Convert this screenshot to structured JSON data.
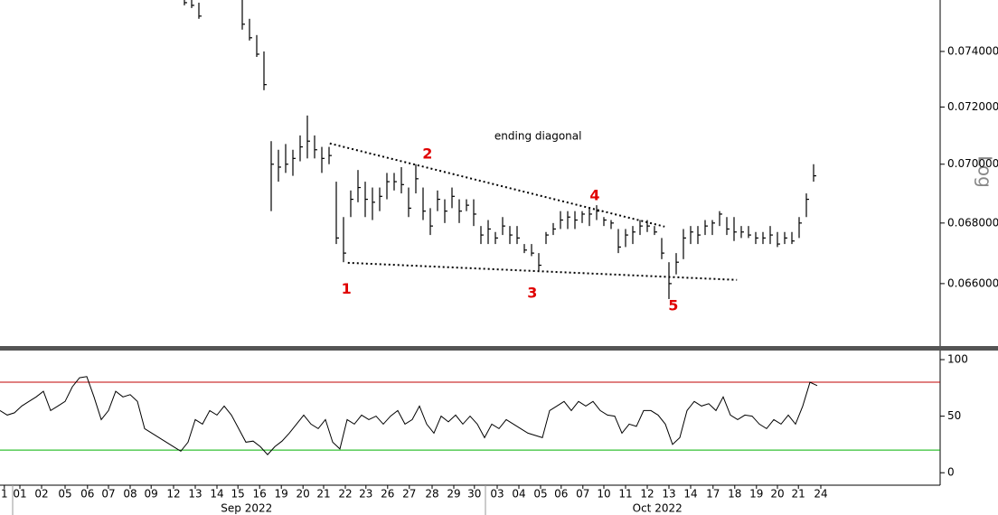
{
  "chart_data": [
    {
      "type": "ohlc",
      "log_scale": true,
      "scale_label": "Log",
      "color": "#000000",
      "xlim": [
        0,
        130
      ],
      "ylim": [
        0.064,
        0.0759
      ],
      "yticks": [
        {
          "value": 0.066,
          "label": "0.066000"
        },
        {
          "value": 0.068,
          "label": "0.068000"
        },
        {
          "value": 0.07,
          "label": "0.070000"
        },
        {
          "value": 0.072,
          "label": "0.072000"
        },
        {
          "value": 0.074,
          "label": "0.074000"
        }
      ],
      "x": [
        25.5,
        26.5,
        27.5,
        33.5,
        34.5,
        35.5,
        36.5,
        37.5,
        38.5,
        39.5,
        40.5,
        41.5,
        42.5,
        43.5,
        44.5,
        45.5,
        46.5,
        47.5,
        48.5,
        49.5,
        50.5,
        51.5,
        52.5,
        53.5,
        54.5,
        55.5,
        56.5,
        57.5,
        58.5,
        59.5,
        60.5,
        61.5,
        62.5,
        63.5,
        64.5,
        65.5,
        66.5,
        67.5,
        68.5,
        69.5,
        70.5,
        71.5,
        72.5,
        73.5,
        74.5,
        75.5,
        76.5,
        77.5,
        78.5,
        79.5,
        80.5,
        81.5,
        82.5,
        83.5,
        84.5,
        85.5,
        86.5,
        87.5,
        88.5,
        89.5,
        90.5,
        91.5,
        92.5,
        93.5,
        94.5,
        95.5,
        96.5,
        97.5,
        98.5,
        99.5,
        100.5,
        101.5,
        102.5,
        103.5,
        104.5,
        105.5,
        106.5,
        107.5,
        108.5,
        109.5,
        110.5,
        111.5,
        112.5
      ],
      "high": [
        0.0759,
        0.0759,
        0.0758,
        0.0759,
        0.0752,
        0.0746,
        0.074,
        0.0708,
        0.0705,
        0.0707,
        0.0705,
        0.071,
        0.0717,
        0.071,
        0.0706,
        0.0706,
        0.0694,
        0.0682,
        0.0691,
        0.0698,
        0.0694,
        0.0692,
        0.0692,
        0.0697,
        0.0697,
        0.0699,
        0.0692,
        0.07,
        0.0692,
        0.0685,
        0.0691,
        0.0688,
        0.0692,
        0.0688,
        0.0688,
        0.0688,
        0.0679,
        0.0681,
        0.0677,
        0.0682,
        0.0679,
        0.0679,
        0.0673,
        0.0673,
        0.067,
        0.0677,
        0.068,
        0.0684,
        0.0684,
        0.0684,
        0.0684,
        0.0685,
        0.0686,
        0.0682,
        0.0681,
        0.0678,
        0.0678,
        0.0679,
        0.0681,
        0.0681,
        0.0679,
        0.0675,
        0.0667,
        0.067,
        0.0678,
        0.0679,
        0.0679,
        0.0681,
        0.0681,
        0.0684,
        0.0682,
        0.0682,
        0.0679,
        0.0679,
        0.0677,
        0.0677,
        0.0679,
        0.0677,
        0.0677,
        0.0677,
        0.0682,
        0.069,
        0.07
      ],
      "low": [
        0.0757,
        0.0756,
        0.0752,
        0.0748,
        0.0744,
        0.0738,
        0.0726,
        0.0684,
        0.0694,
        0.0697,
        0.0696,
        0.0701,
        0.0702,
        0.0702,
        0.0697,
        0.07,
        0.0673,
        0.0667,
        0.0682,
        0.0687,
        0.0682,
        0.0681,
        0.0684,
        0.0688,
        0.0691,
        0.069,
        0.0682,
        0.069,
        0.0681,
        0.0676,
        0.0684,
        0.068,
        0.0685,
        0.068,
        0.0684,
        0.0679,
        0.0673,
        0.0673,
        0.0673,
        0.0676,
        0.0673,
        0.0673,
        0.067,
        0.0669,
        0.0664,
        0.0673,
        0.0676,
        0.0678,
        0.0678,
        0.0678,
        0.068,
        0.0679,
        0.0681,
        0.0679,
        0.0678,
        0.067,
        0.0672,
        0.0673,
        0.0676,
        0.0677,
        0.0676,
        0.0668,
        0.0655,
        0.0663,
        0.0668,
        0.0673,
        0.0673,
        0.0676,
        0.0676,
        0.0679,
        0.0676,
        0.0674,
        0.0675,
        0.0675,
        0.0673,
        0.0673,
        0.0673,
        0.0672,
        0.0673,
        0.0673,
        0.0675,
        0.0682,
        0.0694
      ],
      "close": [
        0.0758,
        0.0757,
        0.0753,
        0.075,
        0.0745,
        0.0739,
        0.0728,
        0.07,
        0.0699,
        0.07,
        0.0702,
        0.0706,
        0.0708,
        0.0705,
        0.0702,
        0.0703,
        0.0675,
        0.067,
        0.0688,
        0.0692,
        0.0688,
        0.0687,
        0.0689,
        0.0694,
        0.0694,
        0.0693,
        0.0685,
        0.0695,
        0.0684,
        0.0679,
        0.0688,
        0.0684,
        0.0689,
        0.0684,
        0.0686,
        0.0683,
        0.0676,
        0.0678,
        0.0675,
        0.0679,
        0.0676,
        0.0675,
        0.0671,
        0.067,
        0.0666,
        0.0676,
        0.0678,
        0.0681,
        0.0682,
        0.0681,
        0.0683,
        0.0683,
        0.0684,
        0.0681,
        0.068,
        0.0672,
        0.0676,
        0.0677,
        0.0679,
        0.0679,
        0.0677,
        0.067,
        0.066,
        0.0667,
        0.0675,
        0.0677,
        0.0676,
        0.0679,
        0.068,
        0.0683,
        0.0678,
        0.0677,
        0.0677,
        0.0676,
        0.0675,
        0.0675,
        0.0676,
        0.0673,
        0.0675,
        0.0674,
        0.068,
        0.0688,
        0.0696
      ],
      "annotations": [
        {
          "text": "ending diagonal",
          "x": 74.4,
          "y": 0.07097,
          "color": "#000000"
        },
        {
          "text": "1",
          "x": 47.9,
          "y": 0.0658,
          "color": "#e00000"
        },
        {
          "text": "2",
          "x": 59.1,
          "y": 0.07034,
          "color": "#e00000"
        },
        {
          "text": "3",
          "x": 73.6,
          "y": 0.06568,
          "color": "#e00000"
        },
        {
          "text": "4",
          "x": 82.25,
          "y": 0.06891,
          "color": "#e00000"
        },
        {
          "text": "5",
          "x": 93.1,
          "y": 0.06527,
          "color": "#e00000"
        }
      ],
      "trendlines": [
        {
          "x": [
            45.6,
            91.9
          ],
          "y": [
            0.07072,
            0.06788
          ]
        },
        {
          "x": [
            48.1,
            101.9
          ],
          "y": [
            0.06668,
            0.06612
          ]
        }
      ]
    },
    {
      "type": "line",
      "color": "#000000",
      "xlim": [
        0,
        130
      ],
      "ylim": [
        -11,
        108
      ],
      "yticks": [
        0,
        50,
        100
      ],
      "levels": [
        {
          "value": 80,
          "color": "#c00000"
        },
        {
          "value": 20,
          "color": "#00b000"
        }
      ],
      "x": [
        0,
        1,
        2,
        3,
        4,
        5,
        6,
        7,
        8,
        9,
        10,
        11,
        12,
        13,
        14,
        15,
        16,
        17,
        18,
        19,
        20,
        21,
        22,
        23,
        24,
        25,
        26,
        27,
        28,
        29,
        30,
        31,
        32,
        33,
        34,
        35,
        36,
        37,
        38,
        39,
        40,
        41,
        42,
        43,
        44,
        45,
        46,
        47,
        48,
        49,
        50,
        51,
        52,
        53,
        54,
        55,
        56,
        57,
        58,
        59,
        60,
        61,
        62,
        63,
        64,
        65,
        66,
        67,
        68,
        69,
        70,
        71,
        72,
        73,
        74,
        75,
        76,
        77,
        78,
        79,
        80,
        81,
        82,
        83,
        84,
        85,
        86,
        87,
        88,
        89,
        90,
        91,
        92,
        93,
        94,
        95,
        96,
        97,
        98,
        99,
        100,
        101,
        102,
        103,
        104,
        105,
        106,
        107,
        108,
        109,
        110,
        111,
        112,
        113
      ],
      "values": [
        55,
        51,
        53,
        59,
        63,
        67,
        72,
        55,
        59,
        63,
        76,
        84,
        85,
        67,
        47,
        55,
        72,
        67,
        69,
        63,
        39,
        35,
        31,
        27,
        23,
        19,
        27,
        47,
        43,
        55,
        51,
        59,
        51,
        39,
        27,
        28,
        23,
        16,
        23,
        28,
        35,
        43,
        51,
        43,
        39,
        47,
        27,
        21,
        47,
        43,
        51,
        47,
        50,
        43,
        50,
        55,
        43,
        47,
        59,
        43,
        35,
        50,
        45,
        51,
        43,
        50,
        43,
        31,
        43,
        39,
        47,
        43,
        39,
        35,
        33,
        31,
        55,
        59,
        63,
        55,
        63,
        59,
        63,
        55,
        51,
        50,
        35,
        43,
        41,
        55,
        55,
        51,
        43,
        25,
        31,
        55,
        63,
        59,
        61,
        55,
        67,
        51,
        47,
        51,
        50,
        43,
        39,
        47,
        43,
        51,
        43,
        59,
        80,
        77
      ],
      "xticks": [
        {
          "value": 0.6,
          "label": "1"
        },
        {
          "value": 2.75,
          "label": "01"
        },
        {
          "value": 5.75,
          "label": "02"
        },
        {
          "value": 9,
          "label": "05"
        },
        {
          "value": 12.1,
          "label": "06"
        },
        {
          "value": 15,
          "label": "07"
        },
        {
          "value": 18,
          "label": "08"
        },
        {
          "value": 20.9,
          "label": "09"
        },
        {
          "value": 24,
          "label": "12"
        },
        {
          "value": 27,
          "label": "13"
        },
        {
          "value": 30,
          "label": "14"
        },
        {
          "value": 32.9,
          "label": "15"
        },
        {
          "value": 35.9,
          "label": "16"
        },
        {
          "value": 38.9,
          "label": "19"
        },
        {
          "value": 41.9,
          "label": "20"
        },
        {
          "value": 44.75,
          "label": "21"
        },
        {
          "value": 47.75,
          "label": "22"
        },
        {
          "value": 50.6,
          "label": "23"
        },
        {
          "value": 53.6,
          "label": "26"
        },
        {
          "value": 56.6,
          "label": "27"
        },
        {
          "value": 59.75,
          "label": "28"
        },
        {
          "value": 62.75,
          "label": "29"
        },
        {
          "value": 65.6,
          "label": "30"
        },
        {
          "value": 68.75,
          "label": "03"
        },
        {
          "value": 71.75,
          "label": "04"
        },
        {
          "value": 74.75,
          "label": "05"
        },
        {
          "value": 77.6,
          "label": "06"
        },
        {
          "value": 80.6,
          "label": "07"
        },
        {
          "value": 83.5,
          "label": "10"
        },
        {
          "value": 86.5,
          "label": "11"
        },
        {
          "value": 89.5,
          "label": "12"
        },
        {
          "value": 92.5,
          "label": "13"
        },
        {
          "value": 95.5,
          "label": "14"
        },
        {
          "value": 98.6,
          "label": "17"
        },
        {
          "value": 101.6,
          "label": "18"
        },
        {
          "value": 104.6,
          "label": "19"
        },
        {
          "value": 107.5,
          "label": "20"
        },
        {
          "value": 110.4,
          "label": "21"
        },
        {
          "value": 113.5,
          "label": "24"
        }
      ],
      "month_labels": [
        {
          "value": 34.1,
          "label": "Sep 2022"
        },
        {
          "value": 90.9,
          "label": "Oct 2022"
        }
      ]
    }
  ]
}
